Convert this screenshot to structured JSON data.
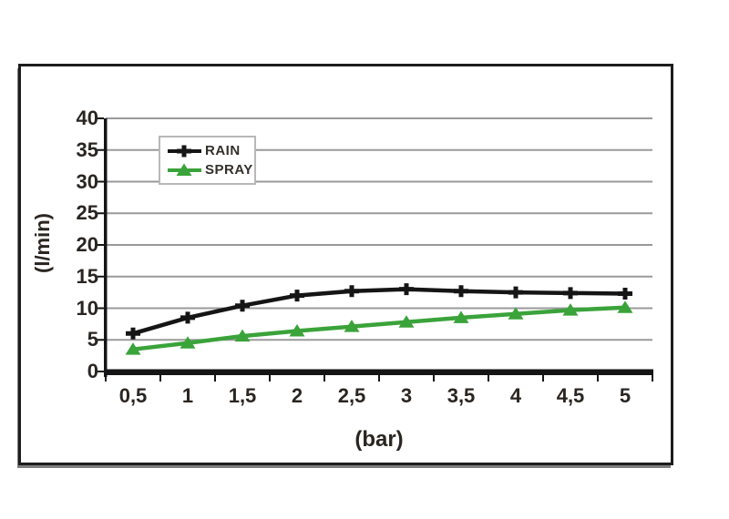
{
  "chart_data": {
    "type": "line",
    "title": "",
    "xlabel": "(bar)",
    "ylabel": "(l/min)",
    "x_categories": [
      "0,5",
      "1",
      "1,5",
      "2",
      "2,5",
      "3",
      "3,5",
      "4",
      "4,5",
      "5"
    ],
    "x_values": [
      0.5,
      1,
      1.5,
      2,
      2.5,
      3,
      3.5,
      4,
      4.5,
      5
    ],
    "y_ticks": [
      0,
      5,
      10,
      15,
      20,
      25,
      30,
      35,
      40
    ],
    "ylim": [
      0,
      40
    ],
    "grid": "horizontal-gridlines",
    "legend_position": "inside-upper-left",
    "series": [
      {
        "name": "RAIN",
        "color": "#151515",
        "marker": "plus",
        "values": [
          6,
          8.5,
          10.4,
          12,
          12.7,
          13,
          12.7,
          12.5,
          12.4,
          12.3
        ]
      },
      {
        "name": "SPRAY",
        "color": "#3aa33a",
        "marker": "triangle",
        "values": [
          3.5,
          4.5,
          5.6,
          6.4,
          7.1,
          7.8,
          8.5,
          9.1,
          9.7,
          10.1
        ]
      }
    ],
    "colors": {
      "gridline": "#9a9a9a",
      "axis": "#151515",
      "text": "#2a2520",
      "plot_background": "#ffffff",
      "frame_border": "#1d1d1d",
      "legend_border": "#b8b8b8"
    }
  }
}
